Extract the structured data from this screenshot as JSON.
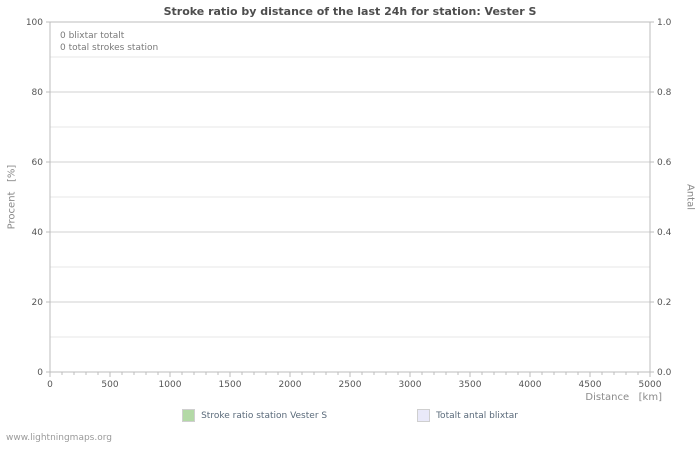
{
  "page": {
    "footer": "www.lightningmaps.org"
  },
  "chart_data": {
    "type": "line",
    "title": "Stroke ratio by distance of the last 24h for station: Vester S",
    "xlabel": "Distance   [km]",
    "ylabel_left": "Procent   [%]",
    "ylabel_right": "Antal",
    "xlim": [
      0,
      5000
    ],
    "ylim_left": [
      0,
      100
    ],
    "ylim_right": [
      0.0,
      1.0
    ],
    "x_major_ticks": [
      0,
      500,
      1000,
      1500,
      2000,
      2500,
      3000,
      3500,
      4000,
      4500,
      5000
    ],
    "x_minor_step": 100,
    "y_left_ticks": [
      0,
      20,
      40,
      60,
      80,
      100
    ],
    "y_left_minor_step": 10,
    "y_right_ticks": [
      "0.0",
      "0.2",
      "0.4",
      "0.6",
      "0.8",
      "1.0"
    ],
    "grid": true,
    "legend_position": "bottom",
    "annotations": [
      "0 blixtar totalt",
      "0 total strokes station"
    ],
    "legend": [
      {
        "label": "Stroke ratio station Vester S",
        "color": "#b3d9a6"
      },
      {
        "label": "Totalt antal blixtar",
        "color": "#e9e9f9"
      }
    ],
    "series": [
      {
        "name": "Stroke ratio station Vester S",
        "x": [],
        "values": []
      },
      {
        "name": "Totalt antal blixtar",
        "x": [],
        "values": []
      }
    ],
    "colors": {
      "grid_major": "#d2d2d2",
      "grid_minor": "#e7e7e7",
      "plot_border": "#bcbcbc",
      "tick_text": "#555555"
    }
  }
}
